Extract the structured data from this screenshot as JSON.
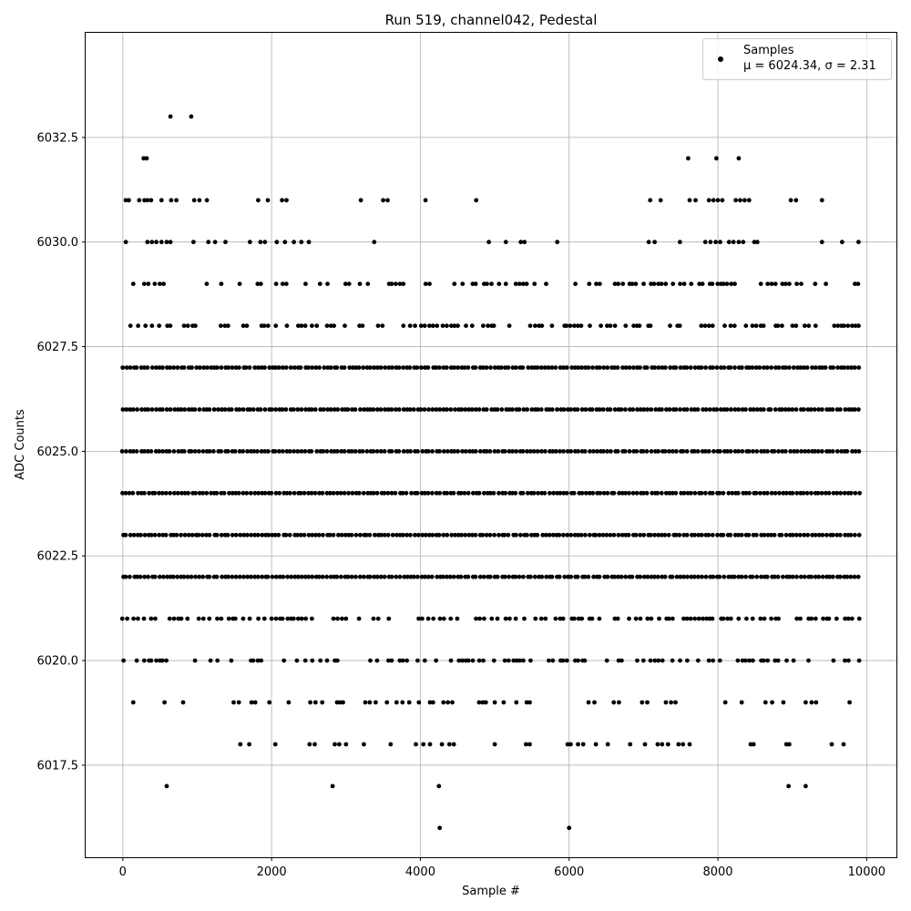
{
  "chart_data": {
    "type": "scatter",
    "title": "Run 519, channel042, Pedestal",
    "xlabel": "Sample #",
    "ylabel": "ADC Counts",
    "xlim": [
      -500,
      10400
    ],
    "ylim": [
      6015.3,
      6035.0
    ],
    "xticks": [
      0,
      2000,
      4000,
      6000,
      8000,
      10000
    ],
    "xtick_labels": [
      "0",
      "2000",
      "4000",
      "6000",
      "8000",
      "10000"
    ],
    "yticks": [
      6017.5,
      6020.0,
      6022.5,
      6025.0,
      6027.5,
      6030.0,
      6032.5
    ],
    "ytick_labels": [
      "6017.5",
      "6020.0",
      "6022.5",
      "6025.0",
      "6027.5",
      "6030.0",
      "6032.5"
    ],
    "grid": true,
    "legend_position": "top-right",
    "marker_color": "#000000",
    "series": [
      {
        "name": "Samples",
        "legend_stats": "μ = 6024.34, σ = 2.31",
        "x_range": [
          0,
          9920
        ],
        "dense_levels": [
          {
            "y": 6022,
            "density": 1.0
          },
          {
            "y": 6023,
            "density": 1.0
          },
          {
            "y": 6024,
            "density": 1.0
          },
          {
            "y": 6025,
            "density": 1.0
          },
          {
            "y": 6026,
            "density": 1.0
          },
          {
            "y": 6027,
            "density": 1.0
          },
          {
            "y": 6028,
            "density": 0.55
          },
          {
            "y": 6021,
            "density": 0.55
          },
          {
            "y": 6029,
            "density": 0.35
          },
          {
            "y": 6020,
            "density": 0.45
          }
        ],
        "sparse_points": [
          {
            "x": 640,
            "y": 6033
          },
          {
            "x": 920,
            "y": 6033
          },
          {
            "x": 280,
            "y": 6032
          },
          {
            "x": 320,
            "y": 6032
          },
          {
            "x": 7600,
            "y": 6032
          },
          {
            "x": 7980,
            "y": 6032
          },
          {
            "x": 8280,
            "y": 6032
          },
          {
            "x": 40,
            "y": 6031
          },
          {
            "x": 80,
            "y": 6031
          },
          {
            "x": 220,
            "y": 6031
          },
          {
            "x": 290,
            "y": 6031
          },
          {
            "x": 330,
            "y": 6031
          },
          {
            "x": 380,
            "y": 6031
          },
          {
            "x": 520,
            "y": 6031
          },
          {
            "x": 650,
            "y": 6031
          },
          {
            "x": 720,
            "y": 6031
          },
          {
            "x": 960,
            "y": 6031
          },
          {
            "x": 1030,
            "y": 6031
          },
          {
            "x": 1130,
            "y": 6031
          },
          {
            "x": 1820,
            "y": 6031
          },
          {
            "x": 1950,
            "y": 6031
          },
          {
            "x": 2140,
            "y": 6031
          },
          {
            "x": 2200,
            "y": 6031
          },
          {
            "x": 3200,
            "y": 6031
          },
          {
            "x": 3500,
            "y": 6031
          },
          {
            "x": 3560,
            "y": 6031
          },
          {
            "x": 4070,
            "y": 6031
          },
          {
            "x": 4750,
            "y": 6031
          },
          {
            "x": 7090,
            "y": 6031
          },
          {
            "x": 7230,
            "y": 6031
          },
          {
            "x": 7620,
            "y": 6031
          },
          {
            "x": 7700,
            "y": 6031
          },
          {
            "x": 7880,
            "y": 6031
          },
          {
            "x": 7940,
            "y": 6031
          },
          {
            "x": 8000,
            "y": 6031
          },
          {
            "x": 8060,
            "y": 6031
          },
          {
            "x": 8240,
            "y": 6031
          },
          {
            "x": 8300,
            "y": 6031
          },
          {
            "x": 8360,
            "y": 6031
          },
          {
            "x": 8420,
            "y": 6031
          },
          {
            "x": 8980,
            "y": 6031
          },
          {
            "x": 9050,
            "y": 6031
          },
          {
            "x": 9400,
            "y": 6031
          },
          {
            "x": 40,
            "y": 6030
          },
          {
            "x": 330,
            "y": 6030
          },
          {
            "x": 390,
            "y": 6030
          },
          {
            "x": 450,
            "y": 6030
          },
          {
            "x": 520,
            "y": 6030
          },
          {
            "x": 590,
            "y": 6030
          },
          {
            "x": 640,
            "y": 6030
          },
          {
            "x": 950,
            "y": 6030
          },
          {
            "x": 1150,
            "y": 6030
          },
          {
            "x": 1240,
            "y": 6030
          },
          {
            "x": 1380,
            "y": 6030
          },
          {
            "x": 1710,
            "y": 6030
          },
          {
            "x": 1850,
            "y": 6030
          },
          {
            "x": 1910,
            "y": 6030
          },
          {
            "x": 2070,
            "y": 6030
          },
          {
            "x": 2180,
            "y": 6030
          },
          {
            "x": 2300,
            "y": 6030
          },
          {
            "x": 2400,
            "y": 6030
          },
          {
            "x": 2500,
            "y": 6030
          },
          {
            "x": 3380,
            "y": 6030
          },
          {
            "x": 4920,
            "y": 6030
          },
          {
            "x": 5150,
            "y": 6030
          },
          {
            "x": 5350,
            "y": 6030
          },
          {
            "x": 5400,
            "y": 6030
          },
          {
            "x": 5840,
            "y": 6030
          },
          {
            "x": 7070,
            "y": 6030
          },
          {
            "x": 7150,
            "y": 6030
          },
          {
            "x": 7490,
            "y": 6030
          },
          {
            "x": 7830,
            "y": 6030
          },
          {
            "x": 7900,
            "y": 6030
          },
          {
            "x": 7970,
            "y": 6030
          },
          {
            "x": 8030,
            "y": 6030
          },
          {
            "x": 8150,
            "y": 6030
          },
          {
            "x": 8210,
            "y": 6030
          },
          {
            "x": 8280,
            "y": 6030
          },
          {
            "x": 8340,
            "y": 6030
          },
          {
            "x": 8490,
            "y": 6030
          },
          {
            "x": 8530,
            "y": 6030
          },
          {
            "x": 9400,
            "y": 6030
          },
          {
            "x": 9670,
            "y": 6030
          },
          {
            "x": 9890,
            "y": 6030
          },
          {
            "x": 140,
            "y": 6019
          },
          {
            "x": 560,
            "y": 6019
          },
          {
            "x": 810,
            "y": 6019
          },
          {
            "x": 1490,
            "y": 6019
          },
          {
            "x": 1560,
            "y": 6019
          },
          {
            "x": 1730,
            "y": 6019
          },
          {
            "x": 1780,
            "y": 6019
          },
          {
            "x": 1970,
            "y": 6019
          },
          {
            "x": 2230,
            "y": 6019
          },
          {
            "x": 2520,
            "y": 6019
          },
          {
            "x": 2590,
            "y": 6019
          },
          {
            "x": 2680,
            "y": 6019
          },
          {
            "x": 2880,
            "y": 6019
          },
          {
            "x": 2920,
            "y": 6019
          },
          {
            "x": 2960,
            "y": 6019
          },
          {
            "x": 3260,
            "y": 6019
          },
          {
            "x": 3320,
            "y": 6019
          },
          {
            "x": 3400,
            "y": 6019
          },
          {
            "x": 3550,
            "y": 6019
          },
          {
            "x": 3680,
            "y": 6019
          },
          {
            "x": 3760,
            "y": 6019
          },
          {
            "x": 3850,
            "y": 6019
          },
          {
            "x": 3980,
            "y": 6019
          },
          {
            "x": 4130,
            "y": 6019
          },
          {
            "x": 4170,
            "y": 6019
          },
          {
            "x": 4310,
            "y": 6019
          },
          {
            "x": 4370,
            "y": 6019
          },
          {
            "x": 4430,
            "y": 6019
          },
          {
            "x": 4790,
            "y": 6019
          },
          {
            "x": 4840,
            "y": 6019
          },
          {
            "x": 4880,
            "y": 6019
          },
          {
            "x": 5000,
            "y": 6019
          },
          {
            "x": 5120,
            "y": 6019
          },
          {
            "x": 5290,
            "y": 6019
          },
          {
            "x": 5430,
            "y": 6019
          },
          {
            "x": 5470,
            "y": 6019
          },
          {
            "x": 6260,
            "y": 6019
          },
          {
            "x": 6340,
            "y": 6019
          },
          {
            "x": 6600,
            "y": 6019
          },
          {
            "x": 6670,
            "y": 6019
          },
          {
            "x": 6980,
            "y": 6019
          },
          {
            "x": 7050,
            "y": 6019
          },
          {
            "x": 7300,
            "y": 6019
          },
          {
            "x": 7370,
            "y": 6019
          },
          {
            "x": 7430,
            "y": 6019
          },
          {
            "x": 8100,
            "y": 6019
          },
          {
            "x": 8320,
            "y": 6019
          },
          {
            "x": 8640,
            "y": 6019
          },
          {
            "x": 8730,
            "y": 6019
          },
          {
            "x": 8880,
            "y": 6019
          },
          {
            "x": 9180,
            "y": 6019
          },
          {
            "x": 9260,
            "y": 6019
          },
          {
            "x": 9320,
            "y": 6019
          },
          {
            "x": 9770,
            "y": 6019
          },
          {
            "x": 1580,
            "y": 6018
          },
          {
            "x": 1700,
            "y": 6018
          },
          {
            "x": 2050,
            "y": 6018
          },
          {
            "x": 2510,
            "y": 6018
          },
          {
            "x": 2580,
            "y": 6018
          },
          {
            "x": 2850,
            "y": 6018
          },
          {
            "x": 2910,
            "y": 6018
          },
          {
            "x": 3000,
            "y": 6018
          },
          {
            "x": 3240,
            "y": 6018
          },
          {
            "x": 3600,
            "y": 6018
          },
          {
            "x": 3940,
            "y": 6018
          },
          {
            "x": 4040,
            "y": 6018
          },
          {
            "x": 4130,
            "y": 6018
          },
          {
            "x": 4290,
            "y": 6018
          },
          {
            "x": 4390,
            "y": 6018
          },
          {
            "x": 4450,
            "y": 6018
          },
          {
            "x": 5000,
            "y": 6018
          },
          {
            "x": 5420,
            "y": 6018
          },
          {
            "x": 5470,
            "y": 6018
          },
          {
            "x": 5980,
            "y": 6018
          },
          {
            "x": 6020,
            "y": 6018
          },
          {
            "x": 6120,
            "y": 6018
          },
          {
            "x": 6190,
            "y": 6018
          },
          {
            "x": 6360,
            "y": 6018
          },
          {
            "x": 6520,
            "y": 6018
          },
          {
            "x": 6820,
            "y": 6018
          },
          {
            "x": 7020,
            "y": 6018
          },
          {
            "x": 7190,
            "y": 6018
          },
          {
            "x": 7250,
            "y": 6018
          },
          {
            "x": 7330,
            "y": 6018
          },
          {
            "x": 7470,
            "y": 6018
          },
          {
            "x": 7530,
            "y": 6018
          },
          {
            "x": 7620,
            "y": 6018
          },
          {
            "x": 8440,
            "y": 6018
          },
          {
            "x": 8480,
            "y": 6018
          },
          {
            "x": 8920,
            "y": 6018
          },
          {
            "x": 8960,
            "y": 6018
          },
          {
            "x": 9530,
            "y": 6018
          },
          {
            "x": 9690,
            "y": 6018
          },
          {
            "x": 590,
            "y": 6017
          },
          {
            "x": 2820,
            "y": 6017
          },
          {
            "x": 4250,
            "y": 6017
          },
          {
            "x": 8950,
            "y": 6017
          },
          {
            "x": 9180,
            "y": 6017
          },
          {
            "x": 4260,
            "y": 6016
          },
          {
            "x": 6000,
            "y": 6016
          }
        ]
      }
    ]
  }
}
